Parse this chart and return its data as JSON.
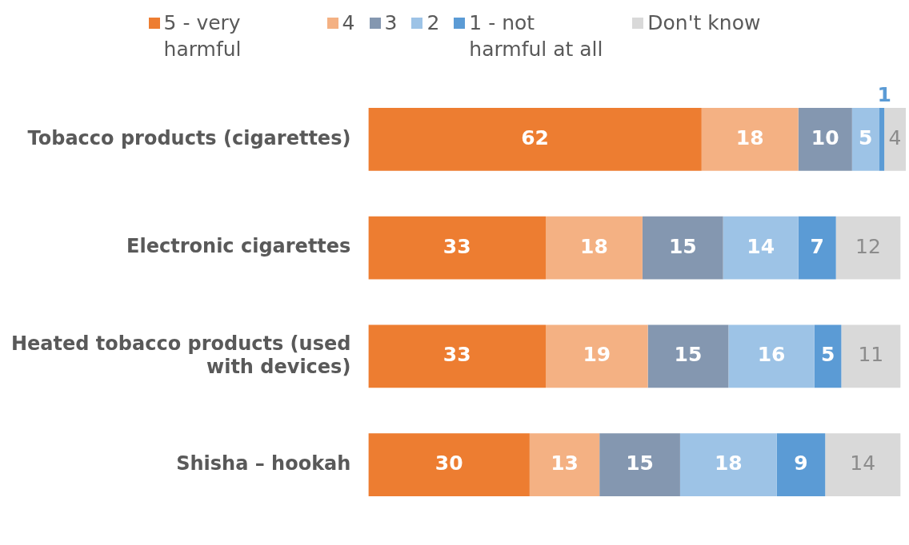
{
  "chart_data": {
    "type": "bar",
    "orientation": "horizontal",
    "stacked": true,
    "data_labels": true,
    "legend": "top",
    "tick_labels": "y",
    "categories": [
      "Tobacco products (cigarettes)",
      "Electronic cigarettes",
      "Heated tobacco products (used with devices)",
      "Shisha – hookah"
    ],
    "series": [
      {
        "name": "5 - very harmful",
        "color": "#ed7d31",
        "values": [
          62,
          33,
          33,
          30
        ]
      },
      {
        "name": "4",
        "color": "#f4b183",
        "values": [
          18,
          18,
          19,
          13
        ]
      },
      {
        "name": "3",
        "color": "#8497b0",
        "values": [
          10,
          15,
          15,
          15
        ]
      },
      {
        "name": "2",
        "color": "#9dc3e6",
        "values": [
          5,
          14,
          16,
          18
        ]
      },
      {
        "name": "1 - not harmful at all",
        "color": "#5b9bd5",
        "values": [
          1,
          7,
          5,
          9
        ]
      },
      {
        "name": "Don't know",
        "color": "#d9d9d9",
        "values": [
          4,
          12,
          11,
          14
        ]
      }
    ]
  }
}
